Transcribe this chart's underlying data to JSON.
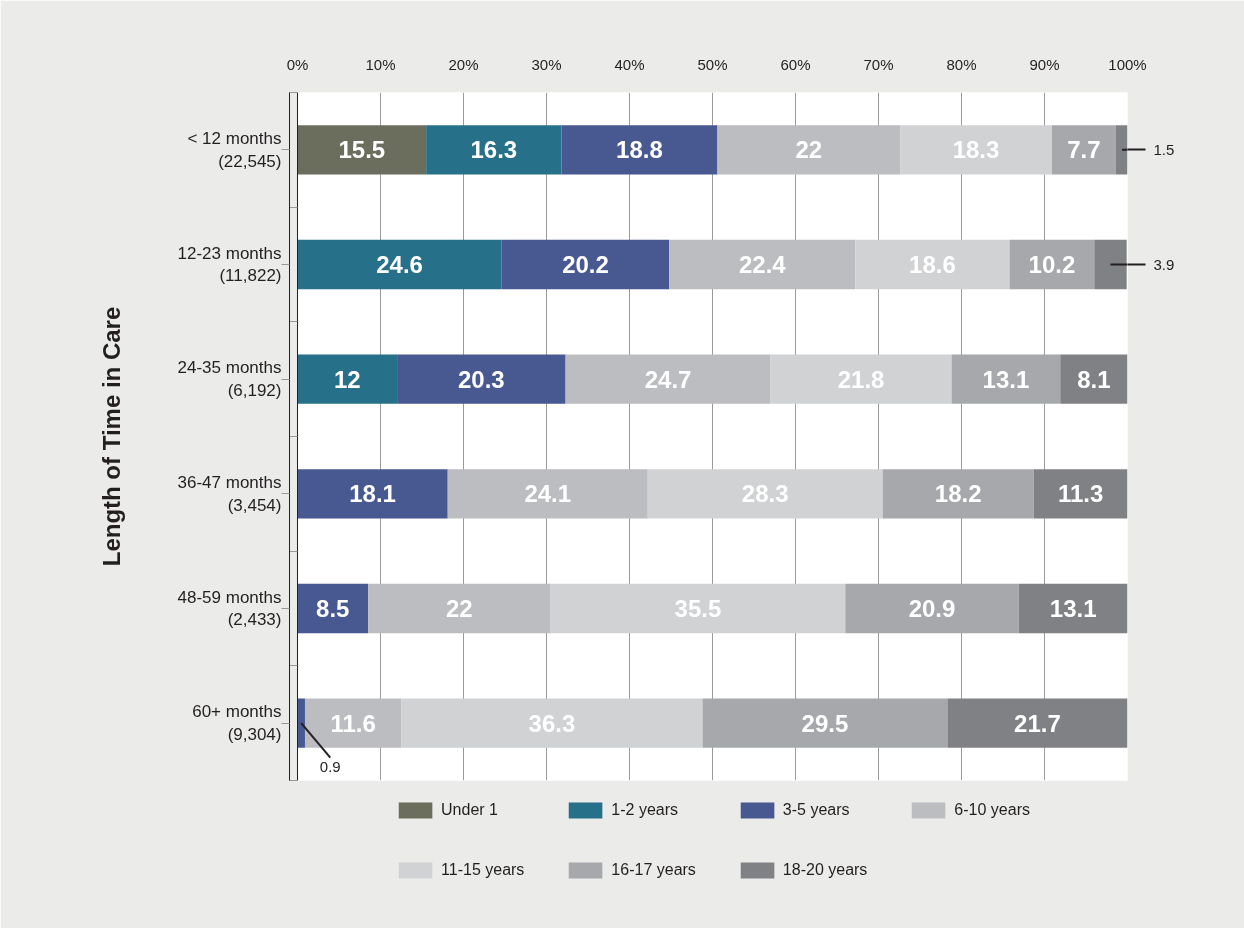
{
  "chart_data": {
    "type": "bar",
    "orientation": "horizontal",
    "stacked": true,
    "ylabel": "Length of Time in Care",
    "categories": [
      "< 12 months\n(22,545)",
      "12-23 months\n(11,822)",
      "24-35 months\n(6,192)",
      "36-47 months\n(3,454)",
      "48-59 months\n(2,433)",
      "60+ months\n(9,304)"
    ],
    "series": [
      {
        "name": "Under 1",
        "color": "#6b6e5c",
        "values": [
          15.5,
          null,
          null,
          null,
          null,
          null
        ]
      },
      {
        "name": "1-2 years",
        "color": "#27708a",
        "values": [
          16.3,
          24.6,
          12,
          null,
          null,
          null
        ]
      },
      {
        "name": "3-5 years",
        "color": "#485991",
        "values": [
          18.8,
          20.2,
          20.3,
          18.1,
          8.5,
          0.9
        ]
      },
      {
        "name": "6-10 years",
        "color": "#bcbdc0",
        "values": [
          22,
          22.4,
          24.7,
          24.1,
          22,
          11.6
        ]
      },
      {
        "name": "11-15 years",
        "color": "#d1d2d4",
        "values": [
          18.3,
          18.6,
          21.8,
          28.3,
          35.5,
          36.3
        ]
      },
      {
        "name": "16-17 years",
        "color": "#a7a8ab",
        "values": [
          7.7,
          10.2,
          13.1,
          18.2,
          20.9,
          29.5
        ]
      },
      {
        "name": "18-20 years",
        "color": "#808184",
        "values": [
          1.5,
          3.9,
          8.1,
          11.3,
          13.1,
          21.7
        ]
      }
    ],
    "xlim": [
      0,
      100
    ],
    "xticks": [
      {
        "value": 0,
        "label": "0%"
      },
      {
        "value": 10,
        "label": "10%"
      },
      {
        "value": 20,
        "label": "20%"
      },
      {
        "value": 30,
        "label": "30%"
      },
      {
        "value": 40,
        "label": "40%"
      },
      {
        "value": 50,
        "label": "50%"
      },
      {
        "value": 60,
        "label": "60%"
      },
      {
        "value": 70,
        "label": "70%"
      },
      {
        "value": 80,
        "label": "80%"
      },
      {
        "value": 90,
        "label": "90%"
      },
      {
        "value": 100,
        "label": "100%"
      }
    ],
    "tick_labels": "x",
    "grid": "x",
    "legend": "bottom",
    "data_labels": true
  }
}
